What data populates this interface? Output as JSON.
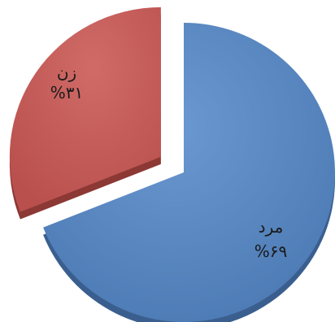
{
  "chart_data": {
    "type": "pie",
    "exploded": true,
    "style": "3d",
    "categories": [
      "مرد",
      "زن"
    ],
    "values": [
      69,
      31
    ],
    "data_labels": [
      {
        "name": "مرد",
        "percent": "%۶۹"
      },
      {
        "name": "زن",
        "percent": "%۳۱"
      }
    ],
    "colors": {
      "مرد": "#4F81BD",
      "زن": "#C0504D"
    },
    "title": "",
    "legend": "none"
  }
}
